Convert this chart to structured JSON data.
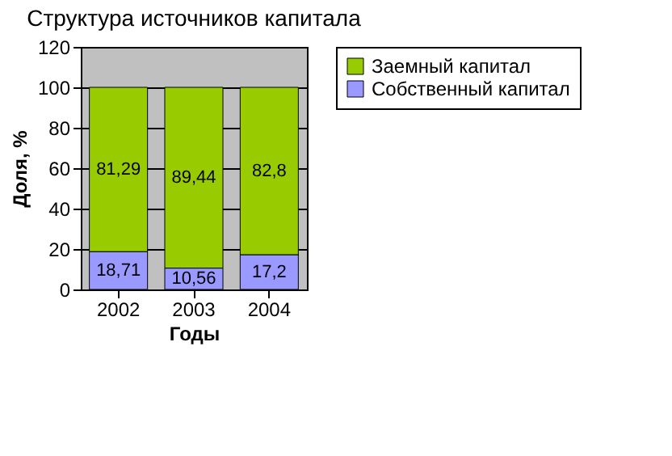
{
  "chart_data": {
    "type": "bar",
    "title": "Структура источников капитала",
    "xlabel": "Годы",
    "ylabel": "Доля, %",
    "categories": [
      "2002",
      "2003",
      "2004"
    ],
    "stacked": true,
    "series": [
      {
        "name": "Собственный капитал",
        "color": "#9999ff",
        "values": [
          18.71,
          10.56,
          17.2
        ],
        "value_labels": [
          "18,71",
          "10,56",
          "17,2"
        ]
      },
      {
        "name": "Заемный капитал",
        "color": "#99cc00",
        "values": [
          81.29,
          89.44,
          82.8
        ],
        "value_labels": [
          "81,29",
          "89,44",
          "82,8"
        ]
      }
    ],
    "ylim": [
      0,
      120
    ],
    "yticks": [
      0,
      20,
      40,
      60,
      80,
      100,
      120
    ],
    "grid": "y",
    "legend": "right"
  }
}
